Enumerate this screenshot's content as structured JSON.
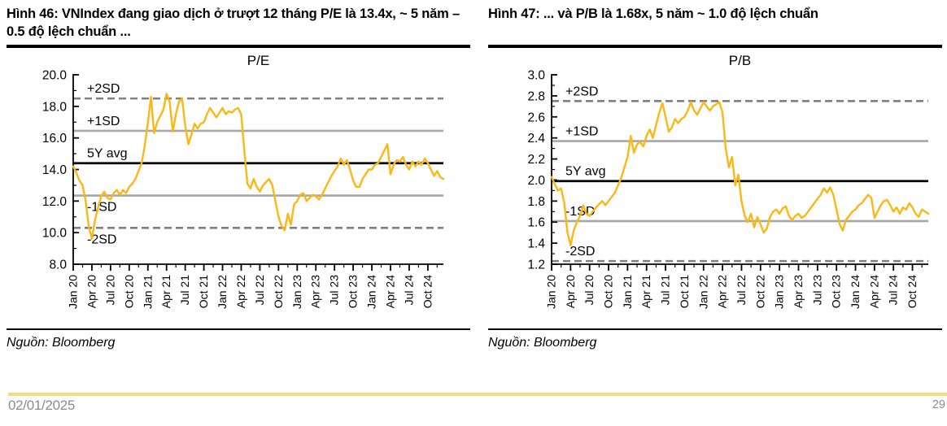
{
  "page": {
    "date": "02/01/2025",
    "page_number": "29"
  },
  "colors": {
    "series": "#FBB714",
    "ref_dashed": "#7F7F7F",
    "ref_solid": "#A6A6A6",
    "ref_avg": "#000000",
    "footer_bar": "#F5DA7E",
    "footer_text": "#8c8c8c"
  },
  "figures": [
    {
      "title": "Hình 46: VNIndex đang giao dịch ở trượt 12 tháng P/E là 13.4x, ~ 5 năm – 0.5 độ lệch chuẩn ...",
      "source": "Nguồn: Bloomberg"
    },
    {
      "title": "Hình 47: ... và P/B là 1.68x, 5 năm ~ 1.0 độ lệch chuẩn",
      "source": "Nguồn: Bloomberg"
    }
  ],
  "chart_data": [
    {
      "type": "line",
      "title": "P/E",
      "xlabel": "",
      "ylabel": "",
      "ylim": [
        8.0,
        20.0
      ],
      "ytick_major_step": 2.0,
      "ytick_minor_step": 1.0,
      "ytick_decimals": 1,
      "grid": false,
      "legend": "none",
      "x_start": "Jan 20",
      "x_end": "Dec 24",
      "points_per_month": 2,
      "xlabels": [
        "Jan 20",
        "Apr 20",
        "Jul 20",
        "Oct 20",
        "Jan 21",
        "Apr 21",
        "Jul 21",
        "Oct 21",
        "Jan 22",
        "Apr 22",
        "Jul 22",
        "Oct 22",
        "Jan 23",
        "Apr 23",
        "Jul 23",
        "Oct 23",
        "Jan 24",
        "Apr 24",
        "Jul 24",
        "Oct 24"
      ],
      "ref_lines": [
        {
          "label": "+2SD",
          "value": 18.5,
          "style": "dashed",
          "label_pos": "above"
        },
        {
          "label": "+1SD",
          "value": 16.45,
          "style": "solid",
          "label_pos": "above"
        },
        {
          "label": "5Y avg",
          "value": 14.4,
          "style": "avg",
          "label_pos": "above"
        },
        {
          "label": "-1SD",
          "value": 12.35,
          "style": "solid",
          "label_pos": "below"
        },
        {
          "label": "-2SD",
          "value": 10.3,
          "style": "dashed",
          "label_pos": "below"
        }
      ],
      "values": [
        14.2,
        13.8,
        13.3,
        13.0,
        12.0,
        10.4,
        9.6,
        10.8,
        11.6,
        12.3,
        12.6,
        12.2,
        12.1,
        12.5,
        12.7,
        12.4,
        12.7,
        12.5,
        12.9,
        13.1,
        13.4,
        13.9,
        14.4,
        15.5,
        17.0,
        18.6,
        16.3,
        17.0,
        17.4,
        17.8,
        18.8,
        18.3,
        16.4,
        17.5,
        18.3,
        18.5,
        16.8,
        15.6,
        16.2,
        16.9,
        16.6,
        16.9,
        17.0,
        17.5,
        17.9,
        17.6,
        17.3,
        17.6,
        17.9,
        17.5,
        17.7,
        17.6,
        17.8,
        17.9,
        17.5,
        15.2,
        13.1,
        12.8,
        13.4,
        12.9,
        12.6,
        13.0,
        13.2,
        13.4,
        13.0,
        12.0,
        11.0,
        10.4,
        10.15,
        11.2,
        10.5,
        11.8,
        12.0,
        12.4,
        12.5,
        12.0,
        12.2,
        12.4,
        12.3,
        12.1,
        12.4,
        12.8,
        13.2,
        13.6,
        13.9,
        14.2,
        14.7,
        14.3,
        14.6,
        14.0,
        13.3,
        12.9,
        12.9,
        13.4,
        13.7,
        14.0,
        14.0,
        14.3,
        14.4,
        14.8,
        15.2,
        15.6,
        13.7,
        14.3,
        14.6,
        14.5,
        14.8,
        14.3,
        14.0,
        14.5,
        14.2,
        14.5,
        14.3,
        14.7,
        14.4,
        14.0,
        13.6,
        13.9,
        13.5,
        13.4
      ],
      "current_value": 13.4,
      "avg_5y": 14.4
    },
    {
      "type": "line",
      "title": "P/B",
      "xlabel": "",
      "ylabel": "",
      "ylim": [
        1.2,
        3.0
      ],
      "ytick_major_step": 0.2,
      "ytick_minor_step": 0.1,
      "ytick_decimals": 1,
      "grid": false,
      "legend": "none",
      "x_start": "Jan 20",
      "x_end": "Dec 24",
      "points_per_month": 2,
      "xlabels": [
        "Jan 20",
        "Apr 20",
        "Jul 20",
        "Oct 20",
        "Jan 21",
        "Apr 21",
        "Jul 21",
        "Oct 21",
        "Jan 22",
        "Apr 22",
        "Jul 22",
        "Oct 22",
        "Jan 23",
        "Apr 23",
        "Jul 23",
        "Oct 23",
        "Jan 24",
        "Apr 24",
        "Jul 24",
        "Oct 24"
      ],
      "ref_lines": [
        {
          "label": "+2SD",
          "value": 2.75,
          "style": "dashed",
          "label_pos": "above"
        },
        {
          "label": "+1SD",
          "value": 2.37,
          "style": "solid",
          "label_pos": "above"
        },
        {
          "label": "5Y avg",
          "value": 1.99,
          "style": "avg",
          "label_pos": "above"
        },
        {
          "label": "-1SD",
          "value": 1.61,
          "style": "solid",
          "label_pos": "above"
        },
        {
          "label": "-2SD",
          "value": 1.23,
          "style": "dashed",
          "label_pos": "above"
        }
      ],
      "values": [
        2.03,
        1.96,
        1.9,
        1.92,
        1.78,
        1.5,
        1.38,
        1.52,
        1.6,
        1.66,
        1.76,
        1.68,
        1.66,
        1.7,
        1.74,
        1.77,
        1.8,
        1.76,
        1.8,
        1.84,
        1.88,
        1.95,
        2.02,
        2.12,
        2.22,
        2.42,
        2.26,
        2.34,
        2.36,
        2.32,
        2.42,
        2.48,
        2.4,
        2.52,
        2.64,
        2.73,
        2.6,
        2.46,
        2.5,
        2.58,
        2.54,
        2.58,
        2.6,
        2.66,
        2.74,
        2.66,
        2.62,
        2.68,
        2.74,
        2.7,
        2.66,
        2.7,
        2.72,
        2.74,
        2.64,
        2.3,
        2.12,
        2.22,
        1.95,
        2.05,
        1.8,
        1.66,
        1.6,
        1.68,
        1.55,
        1.65,
        1.58,
        1.5,
        1.54,
        1.65,
        1.7,
        1.72,
        1.68,
        1.73,
        1.75,
        1.66,
        1.62,
        1.66,
        1.68,
        1.64,
        1.66,
        1.7,
        1.74,
        1.78,
        1.82,
        1.86,
        1.92,
        1.88,
        1.93,
        1.86,
        1.72,
        1.58,
        1.52,
        1.62,
        1.66,
        1.7,
        1.72,
        1.76,
        1.78,
        1.82,
        1.86,
        1.83,
        1.64,
        1.7,
        1.76,
        1.8,
        1.81,
        1.76,
        1.7,
        1.74,
        1.68,
        1.74,
        1.72,
        1.78,
        1.74,
        1.68,
        1.65,
        1.72,
        1.7,
        1.68
      ],
      "current_value": 1.68,
      "avg_5y": 1.99
    }
  ]
}
